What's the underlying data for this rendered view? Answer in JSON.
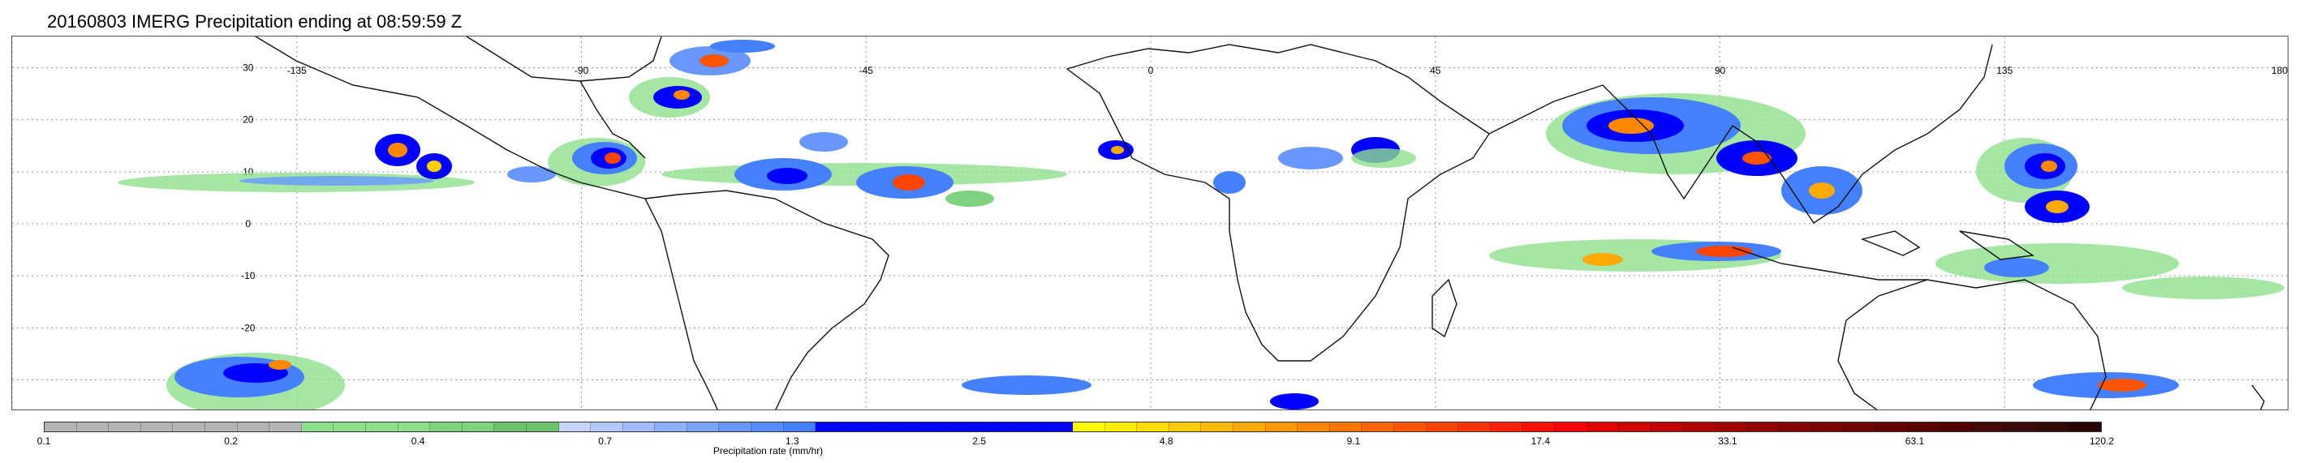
{
  "title": "20160803 IMERG Precipitation ending at 08:59:59 Z",
  "map": {
    "longitude_labels": [
      "-135",
      "-90",
      "-45",
      "0",
      "45",
      "90",
      "135",
      "180"
    ],
    "latitude_labels": [
      "30",
      "20",
      "10",
      "0",
      "-10",
      "-20"
    ],
    "projection": "equirectangular",
    "grid": "dotted",
    "colors": {
      "coastline": "#111111",
      "gridline": "#9a9a9a"
    }
  },
  "colorbar": {
    "label": "Precipitation rate (mm/hr)",
    "tick_labels": [
      "0.1",
      "0.2",
      "0.4",
      "0.7",
      "1.3",
      "2.5",
      "4.8",
      "9.1",
      "17.4",
      "33.1",
      "63.1",
      "120.2"
    ],
    "colors": [
      "#b4b4b4",
      "#b4b4b4",
      "#b4b4b4",
      "#b4b4b4",
      "#b4b4b4",
      "#b4b4b4",
      "#b4b4b4",
      "#b4b4b4",
      "#8ee08e",
      "#8ee08e",
      "#8ee08e",
      "#8ee08e",
      "#7fd27f",
      "#7fd27f",
      "#6cc26c",
      "#6cc26c",
      "#c8d4ff",
      "#b4c8ff",
      "#a2bcff",
      "#8fb0ff",
      "#7ca4ff",
      "#6898ff",
      "#558cff",
      "#4480ff",
      "#0000ff",
      "#0000ff",
      "#0000ff",
      "#0000ff",
      "#0000ff",
      "#0000ff",
      "#0000ff",
      "#0000ff",
      "#ffff00",
      "#ffee00",
      "#ffdd00",
      "#ffcc00",
      "#ffbb00",
      "#ffaa00",
      "#ff9900",
      "#ff8800",
      "#ff7700",
      "#ff6600",
      "#ff5500",
      "#ff4400",
      "#ff3300",
      "#ff2200",
      "#ff1100",
      "#ff0000",
      "#e00000",
      "#d00000",
      "#c00000",
      "#b00000",
      "#a00000",
      "#900000",
      "#850000",
      "#7a0000",
      "#6e0000",
      "#640000",
      "#5a0000",
      "#500000",
      "#460a0a",
      "#3c0a0a",
      "#320a0a",
      "#280505"
    ]
  }
}
